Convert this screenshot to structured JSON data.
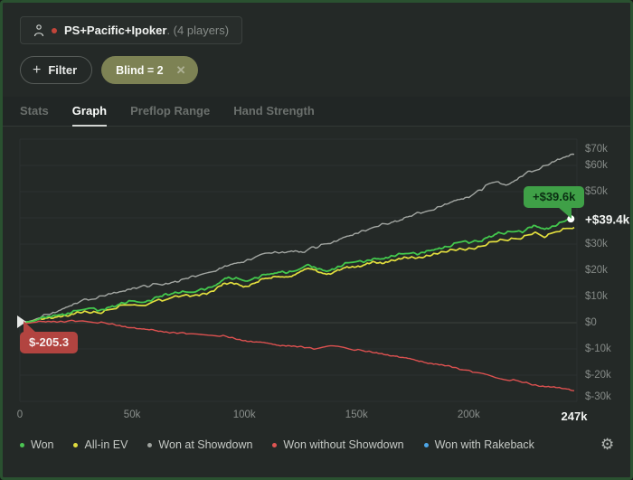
{
  "header": {
    "group_chip": {
      "title": "PS+Pacific+Ipoker",
      "subtitle": ". (4 players)"
    },
    "filter_button": {
      "label": "Filter"
    },
    "filter_chips": [
      {
        "label": "Blind = 2"
      }
    ]
  },
  "icons": {
    "plus": "+",
    "close": "✕",
    "gear": "⚙"
  },
  "tabs": [
    {
      "label": "Stats",
      "active": false
    },
    {
      "label": "Graph",
      "active": true
    },
    {
      "label": "Preflop Range",
      "active": false
    },
    {
      "label": "Hand Strength",
      "active": false
    }
  ],
  "chart_data": {
    "type": "line",
    "xlabel": "hands",
    "ylabel": "winnings USD",
    "x_axis": {
      "max": 247000,
      "ticks": [
        {
          "text": "0",
          "value": 0
        },
        {
          "text": "50k",
          "value": 50000
        },
        {
          "text": "100k",
          "value": 100000
        },
        {
          "text": "150k",
          "value": 150000
        },
        {
          "text": "200k",
          "value": 200000
        }
      ],
      "end_tick": {
        "text": "247k",
        "value": 247000
      }
    },
    "y_axis": {
      "min": -30000,
      "max": 70000,
      "grid_step": 10000,
      "tick_labels": [
        {
          "text": "$70k",
          "value": 70000
        },
        {
          "text": "$60k",
          "value": 60000
        },
        {
          "text": "$50k",
          "value": 50000
        },
        {
          "text": "$30k",
          "value": 30000
        },
        {
          "text": "$20k",
          "value": 20000
        },
        {
          "text": "$10k",
          "value": 10000
        },
        {
          "text": "$0",
          "value": 0
        },
        {
          "text": "$-10k",
          "value": -10000
        },
        {
          "text": "$-20k",
          "value": -20000
        },
        {
          "text": "$-30k",
          "value": -30000
        }
      ],
      "current": {
        "text": "+$39.4k",
        "value": 39400
      }
    },
    "tooltips": [
      {
        "id": "won-end",
        "text": "+$39.6k",
        "value": 39600,
        "hands": 245500
      },
      {
        "id": "won-without-showdown-start",
        "text": "$-205.3",
        "value": -205.3,
        "hands": 0
      }
    ],
    "series": [
      {
        "name": "Won",
        "color": "#43c84d",
        "width": 1.8,
        "amp": 1.9,
        "points": [
          [
            0,
            0
          ],
          [
            6000,
            1200
          ],
          [
            15000,
            2500
          ],
          [
            25000,
            4500
          ],
          [
            31000,
            5500
          ],
          [
            36000,
            5000
          ],
          [
            45000,
            7000
          ],
          [
            51000,
            8500
          ],
          [
            56000,
            8000
          ],
          [
            63000,
            10000
          ],
          [
            71000,
            12000
          ],
          [
            78000,
            11500
          ],
          [
            85000,
            13500
          ],
          [
            91000,
            17000
          ],
          [
            96000,
            16500
          ],
          [
            101000,
            16000
          ],
          [
            108000,
            18000
          ],
          [
            115000,
            19000
          ],
          [
            121000,
            19500
          ],
          [
            128000,
            21500
          ],
          [
            134000,
            20500
          ],
          [
            137000,
            20000
          ],
          [
            144000,
            22000
          ],
          [
            152000,
            23500
          ],
          [
            158000,
            24500
          ],
          [
            162000,
            24000
          ],
          [
            168000,
            26000
          ],
          [
            172000,
            26500
          ],
          [
            178000,
            26000
          ],
          [
            185000,
            28000
          ],
          [
            192000,
            29500
          ],
          [
            198000,
            30500
          ],
          [
            205000,
            31500
          ],
          [
            212000,
            33500
          ],
          [
            218000,
            34500
          ],
          [
            224000,
            35000
          ],
          [
            229000,
            36500
          ],
          [
            234000,
            35500
          ],
          [
            239000,
            37500
          ],
          [
            243000,
            38500
          ],
          [
            245000,
            39600
          ],
          [
            247000,
            39400
          ]
        ]
      },
      {
        "name": "All-in EV",
        "color": "#e2de3e",
        "width": 1.7,
        "amp": 1.7,
        "points": [
          [
            0,
            0
          ],
          [
            6000,
            800
          ],
          [
            15000,
            2000
          ],
          [
            25000,
            3500
          ],
          [
            31000,
            4000
          ],
          [
            36000,
            4200
          ],
          [
            45000,
            6000
          ],
          [
            51000,
            7000
          ],
          [
            56000,
            6500
          ],
          [
            63000,
            8500
          ],
          [
            71000,
            10500
          ],
          [
            78000,
            10000
          ],
          [
            85000,
            12000
          ],
          [
            91000,
            15000
          ],
          [
            96000,
            14500
          ],
          [
            101000,
            14000
          ],
          [
            108000,
            16500
          ],
          [
            115000,
            17500
          ],
          [
            121000,
            18000
          ],
          [
            128000,
            20500
          ],
          [
            134000,
            19500
          ],
          [
            137000,
            18500
          ],
          [
            144000,
            20500
          ],
          [
            152000,
            22000
          ],
          [
            158000,
            23000
          ],
          [
            162000,
            22500
          ],
          [
            168000,
            24500
          ],
          [
            172000,
            25000
          ],
          [
            178000,
            24500
          ],
          [
            185000,
            26500
          ],
          [
            192000,
            27500
          ],
          [
            198000,
            28000
          ],
          [
            205000,
            29000
          ],
          [
            212000,
            31000
          ],
          [
            218000,
            32000
          ],
          [
            224000,
            32500
          ],
          [
            229000,
            34000
          ],
          [
            234000,
            33000
          ],
          [
            239000,
            35000
          ],
          [
            243000,
            35500
          ],
          [
            247000,
            36300
          ]
        ]
      },
      {
        "name": "Won at Showdown",
        "color": "#a3a7a3",
        "width": 1.4,
        "amp": 1.5,
        "points": [
          [
            0,
            0
          ],
          [
            6000,
            1000
          ],
          [
            15000,
            4000
          ],
          [
            31000,
            9300
          ],
          [
            42000,
            11000
          ],
          [
            51000,
            13400
          ],
          [
            62000,
            14500
          ],
          [
            71000,
            16000
          ],
          [
            81000,
            18500
          ],
          [
            91000,
            21000
          ],
          [
            101000,
            24000
          ],
          [
            111000,
            26500
          ],
          [
            121000,
            27500
          ],
          [
            126000,
            26500
          ],
          [
            131000,
            29000
          ],
          [
            141000,
            31000
          ],
          [
            152000,
            35000
          ],
          [
            162000,
            37500
          ],
          [
            172000,
            40000
          ],
          [
            182000,
            43000
          ],
          [
            192000,
            45500
          ],
          [
            202000,
            49000
          ],
          [
            212000,
            54000
          ],
          [
            217000,
            52500
          ],
          [
            227000,
            57500
          ],
          [
            237000,
            61000
          ],
          [
            247000,
            64500
          ]
        ]
      },
      {
        "name": "Won without Showdown",
        "color": "#dd5150",
        "width": 1.4,
        "amp": 1.0,
        "points": [
          [
            0,
            0
          ],
          [
            3000,
            -205
          ],
          [
            8000,
            300
          ],
          [
            15000,
            600
          ],
          [
            20000,
            400
          ],
          [
            28000,
            800
          ],
          [
            35000,
            200
          ],
          [
            42000,
            -800
          ],
          [
            51000,
            -2000
          ],
          [
            60000,
            -3000
          ],
          [
            71000,
            -4000
          ],
          [
            78000,
            -4300
          ],
          [
            85000,
            -4800
          ],
          [
            91000,
            -5200
          ],
          [
            96000,
            -6000
          ],
          [
            101000,
            -7000
          ],
          [
            111000,
            -8000
          ],
          [
            121000,
            -9000
          ],
          [
            131000,
            -9700
          ],
          [
            138000,
            -9200
          ],
          [
            144000,
            -9600
          ],
          [
            152000,
            -10500
          ],
          [
            158000,
            -11500
          ],
          [
            166000,
            -12500
          ],
          [
            172000,
            -13500
          ],
          [
            180000,
            -15000
          ],
          [
            188000,
            -16200
          ],
          [
            196000,
            -17500
          ],
          [
            204000,
            -19000
          ],
          [
            212000,
            -21000
          ],
          [
            220000,
            -22000
          ],
          [
            228000,
            -23500
          ],
          [
            236000,
            -24500
          ],
          [
            242000,
            -25200
          ],
          [
            247000,
            -25800
          ]
        ]
      },
      {
        "name": "Won with Rakeback",
        "color": "#4da6e8",
        "width": 1.4,
        "amp": 1.0,
        "points": []
      }
    ]
  },
  "legend": {
    "items": [
      {
        "label": "Won",
        "color": "#4bc553"
      },
      {
        "label": "All-in EV",
        "color": "#e0dc3f"
      },
      {
        "label": "Won at Showdown",
        "color": "#9fa39f"
      },
      {
        "label": "Won without Showdown",
        "color": "#e05553"
      },
      {
        "label": "Won with Rakeback",
        "color": "#4da6e8"
      }
    ]
  }
}
